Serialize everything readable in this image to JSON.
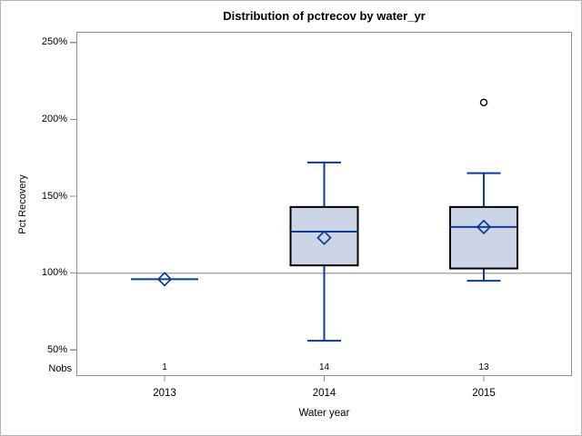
{
  "chart_data": {
    "type": "box",
    "title": "Distribution of pctrecov by water_yr",
    "xlabel": "Water year",
    "ylabel": "Pct Recovery",
    "nobs_label": "Nobs",
    "categories": [
      "2013",
      "2014",
      "2015"
    ],
    "nobs": [
      1,
      14,
      13
    ],
    "yticks": [
      50,
      100,
      150,
      200,
      250
    ],
    "ytick_suffix": "%",
    "ylim": [
      33,
      257
    ],
    "reference_line": 100,
    "grid": false,
    "legend": false,
    "groups": [
      {
        "category": "2013",
        "n": 1,
        "whisker_low": 96,
        "q1": 96,
        "median": 96,
        "q3": 96,
        "whisker_high": 96,
        "mean": 96,
        "outliers": []
      },
      {
        "category": "2014",
        "n": 14,
        "whisker_low": 56,
        "q1": 105,
        "median": 127,
        "q3": 143,
        "whisker_high": 172,
        "mean": 123,
        "outliers": []
      },
      {
        "category": "2015",
        "n": 13,
        "whisker_low": 95,
        "q1": 103,
        "median": 130,
        "q3": 143,
        "whisker_high": 165,
        "mean": 130,
        "outliers": [
          211
        ]
      }
    ]
  },
  "colors": {
    "box_fill": "#ccd5e5",
    "box_border": "#000000",
    "whisker_median_mean": "#0d3a94",
    "axis_line": "#8f8f8f",
    "reference_line": "#ababab",
    "outlier_stroke": "#000000",
    "text": "#000000",
    "figure_border": "#b4b4b4"
  }
}
